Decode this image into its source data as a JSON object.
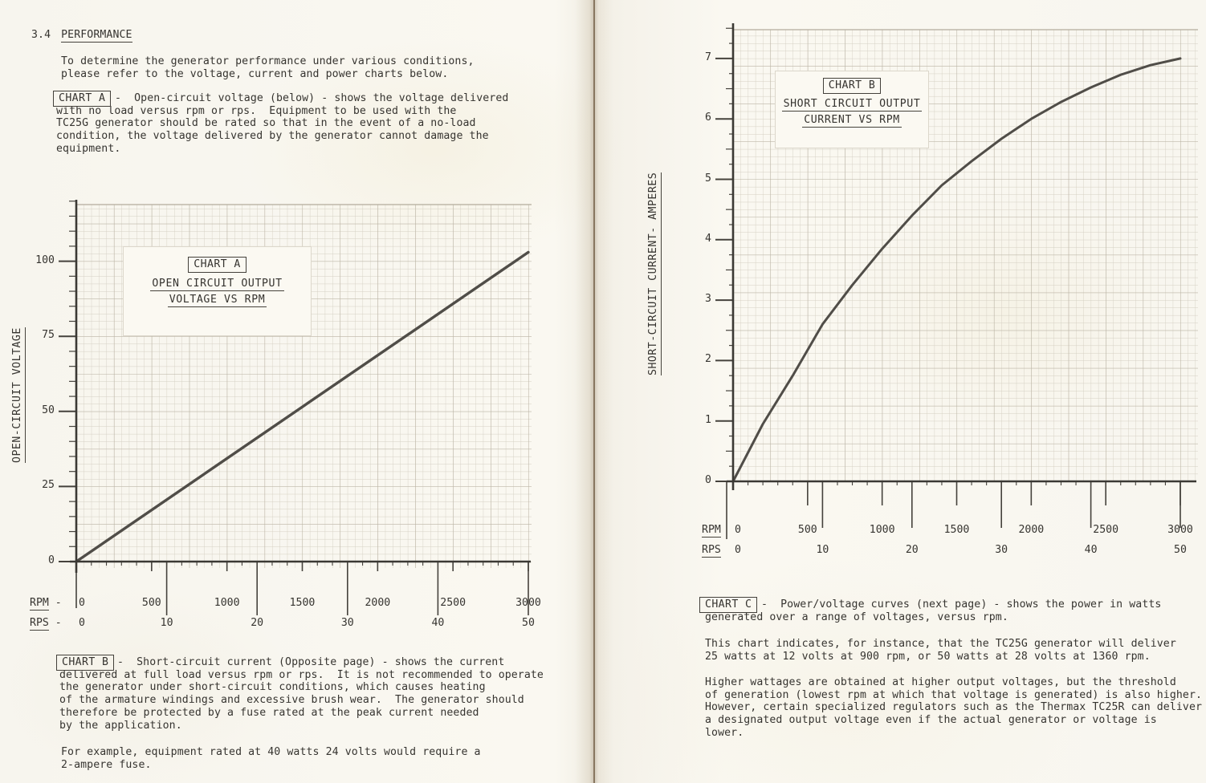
{
  "page": {
    "left": {
      "heading": {
        "number": "3.4",
        "title": "PERFORMANCE"
      },
      "intro": [
        "To determine the generator performance under various conditions,",
        "please refer to the voltage, current and power charts below."
      ],
      "chart_a_note": {
        "tag": "CHART A",
        "first_line": "-  Open-circuit voltage (below) - shows the voltage delivered",
        "lines": [
          "with no load versus rpm or rps.  Equipment to be used with the",
          "TC25G generator should be rated so that in the event of a no-load",
          "condition, the voltage delivered by the generator cannot damage the",
          "equipment."
        ]
      },
      "chart_b_note": {
        "tag": "CHART B",
        "first_line": "-  Short-circuit current (Opposite page) - shows the current",
        "lines": [
          "delivered at full load versus rpm or rps.  It is not recommended to operate",
          "the generator under short-circuit conditions, which causes heating",
          "of the armature windings and excessive brush wear.  The generator should",
          "therefore be protected by a fuse rated at the peak current needed",
          "by the application."
        ]
      },
      "example_note": [
        "For example, equipment rated at 40 watts 24 volts would require a",
        "2-ampere fuse."
      ]
    },
    "right": {
      "chart_c_note": {
        "tag": "CHART C",
        "first_line": "-  Power/voltage curves (next page) - shows the power in watts",
        "lines": [
          "generated over a range of voltages, versus rpm."
        ]
      },
      "para2": [
        "This chart indicates, for instance, that the TC25G generator will deliver",
        "25 watts at 12 volts at 900 rpm, or 50 watts at 28 volts at 1360 rpm."
      ],
      "para3": [
        "Higher wattages are obtained at higher output voltages, but the threshold",
        "of generation (lowest rpm at which that voltage is generated) is also higher.",
        "However, certain specialized regulators such as the Thermax TC25R can deliver",
        "a designated output voltage even if the actual generator or voltage is",
        "lower."
      ]
    }
  },
  "chart_data": [
    {
      "id": "chart-a",
      "type": "line",
      "title": "CHART A",
      "subtitle_lines": [
        "OPEN CIRCUIT OUTPUT",
        "VOLTAGE VS RPM"
      ],
      "ylabel": "OPEN-CIRCUIT VOLTAGE",
      "y_unit": "volts",
      "y_ticks": [
        0,
        25,
        50,
        75,
        100
      ],
      "ylim": [
        0,
        120
      ],
      "rpm_ticks": [
        0,
        500,
        1000,
        1500,
        2000,
        2500,
        3000
      ],
      "rps_ticks": [
        0,
        10,
        20,
        30,
        40,
        50
      ],
      "xlabels": {
        "rpm": "RPM",
        "rps": "RPS",
        "suffix": " -"
      },
      "xlim_rpm": [
        0,
        3000
      ],
      "grid": true,
      "legend": false,
      "series": [
        {
          "name": "open_circuit_voltage_vs_rpm",
          "x_rpm": [
            0,
            3000
          ],
          "y": [
            0,
            103
          ]
        }
      ]
    },
    {
      "id": "chart-b",
      "type": "line",
      "title": "CHART B",
      "subtitle_lines": [
        "SHORT CIRCUIT OUTPUT",
        "CURRENT VS RPM"
      ],
      "ylabel": "SHORT-CIRCUIT CURRENT- AMPERES",
      "y_unit": "amperes",
      "y_ticks": [
        0,
        1,
        2,
        3,
        4,
        5,
        6,
        7
      ],
      "ylim": [
        0,
        7.5
      ],
      "rpm_ticks": [
        0,
        500,
        1000,
        1500,
        2000,
        2500,
        3000
      ],
      "rps_ticks": [
        0,
        10,
        20,
        30,
        40,
        50
      ],
      "xlabels": {
        "rpm": "RPM",
        "rps": "RPS",
        "suffix": ""
      },
      "xlim_rpm": [
        0,
        3000
      ],
      "grid": true,
      "legend": false,
      "series": [
        {
          "name": "short_circuit_current_vs_rpm",
          "x_rpm": [
            0,
            200,
            400,
            600,
            800,
            1000,
            1200,
            1400,
            1600,
            1800,
            2000,
            2200,
            2400,
            2600,
            2800,
            3000
          ],
          "y": [
            0,
            0.95,
            1.75,
            2.6,
            3.25,
            3.85,
            4.4,
            4.9,
            5.3,
            5.67,
            6.0,
            6.28,
            6.52,
            6.73,
            6.89,
            7.0
          ]
        }
      ]
    }
  ],
  "colors": {
    "paper": "#f9f7f0",
    "ink": "#363430",
    "grid_minor": "#ccc6b8",
    "grid_major": "#b3ac9c",
    "axis": "#3b3934",
    "tick": "#45423c",
    "curve": "#504d48",
    "fold": "#6f5b42"
  }
}
